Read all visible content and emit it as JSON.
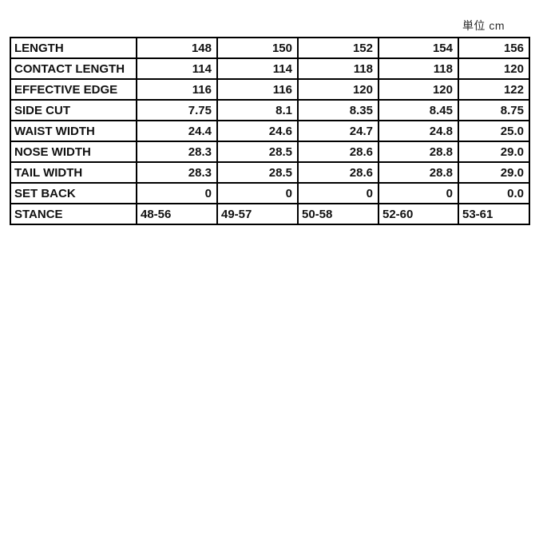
{
  "unit_label": "単位 cm",
  "table": {
    "rows": [
      {
        "label": "LENGTH",
        "align": "right",
        "values": [
          "148",
          "150",
          "152",
          "154",
          "156"
        ]
      },
      {
        "label": "CONTACT LENGTH",
        "align": "right",
        "values": [
          "114",
          "114",
          "118",
          "118",
          "120"
        ]
      },
      {
        "label": "EFFECTIVE EDGE",
        "align": "right",
        "values": [
          "116",
          "116",
          "120",
          "120",
          "122"
        ]
      },
      {
        "label": "SIDE CUT",
        "align": "right",
        "values": [
          "7.75",
          "8.1",
          "8.35",
          "8.45",
          "8.75"
        ]
      },
      {
        "label": "WAIST WIDTH",
        "align": "right",
        "values": [
          "24.4",
          "24.6",
          "24.7",
          "24.8",
          "25.0"
        ]
      },
      {
        "label": "NOSE WIDTH",
        "align": "right",
        "values": [
          "28.3",
          "28.5",
          "28.6",
          "28.8",
          "29.0"
        ]
      },
      {
        "label": "TAIL WIDTH",
        "align": "right",
        "values": [
          "28.3",
          "28.5",
          "28.6",
          "28.8",
          "29.0"
        ]
      },
      {
        "label": "SET BACK",
        "align": "right",
        "values": [
          "0",
          "0",
          "0",
          "0",
          "0.0"
        ]
      },
      {
        "label": "STANCE",
        "align": "left",
        "values": [
          "48-56",
          "49-57",
          "50-58",
          "52-60",
          "53-61"
        ]
      }
    ]
  }
}
